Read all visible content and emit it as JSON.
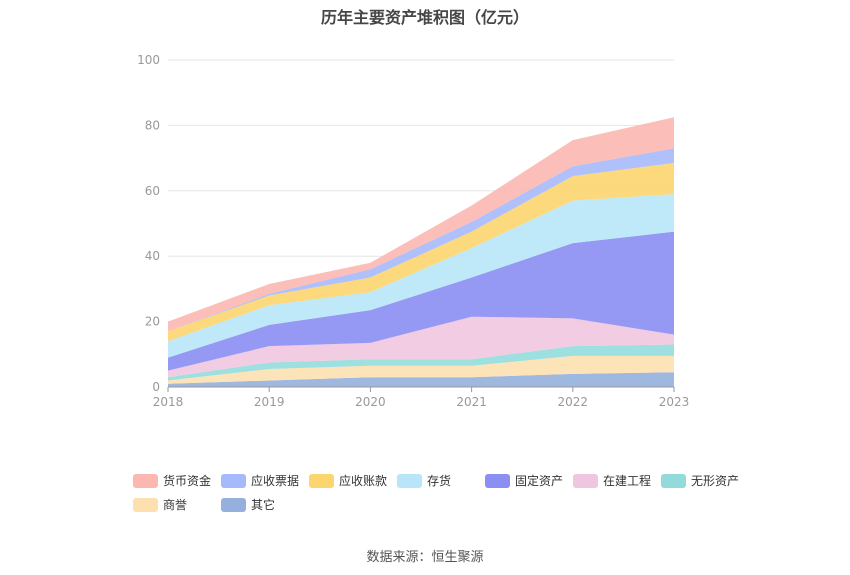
{
  "chart_data": {
    "type": "area",
    "stacked": true,
    "title": "历年主要资产堆积图（亿元）",
    "categories": [
      "2018",
      "2019",
      "2020",
      "2021",
      "2022",
      "2023"
    ],
    "ylim": [
      0,
      100
    ],
    "yticks": [
      0,
      20,
      40,
      60,
      80,
      100
    ],
    "grid": true,
    "legend_position": "bottom",
    "series": [
      {
        "name": "其它",
        "color": "#95b0dc",
        "values": [
          1,
          2,
          3,
          3,
          4,
          4.5
        ]
      },
      {
        "name": "商誉",
        "color": "#fde0b0",
        "values": [
          1,
          3.5,
          3.5,
          3.5,
          5.5,
          5
        ]
      },
      {
        "name": "无形资产",
        "color": "#93dbdb",
        "values": [
          1,
          2,
          2,
          2,
          3,
          3.5
        ]
      },
      {
        "name": "在建工程",
        "color": "#efc6e0",
        "values": [
          2,
          5,
          5,
          13,
          8.5,
          3
        ]
      },
      {
        "name": "固定资产",
        "color": "#8b8ef2",
        "values": [
          4,
          6.5,
          10,
          12,
          23,
          31.5
        ]
      },
      {
        "name": "存货",
        "color": "#b8e6f8",
        "values": [
          5,
          6,
          5.5,
          9,
          13,
          11.5
        ]
      },
      {
        "name": "应收账款",
        "color": "#fdd56f",
        "values": [
          3,
          3,
          4.5,
          5,
          7.5,
          9.5
        ]
      },
      {
        "name": "应收票据",
        "color": "#a6b9fb",
        "values": [
          0,
          0.5,
          2.5,
          3,
          3,
          4.5
        ]
      },
      {
        "name": "货币资金",
        "color": "#fcb7b1",
        "values": [
          3,
          3,
          2,
          5,
          8,
          9.5
        ]
      }
    ]
  },
  "legend_order": [
    "货币资金",
    "应收票据",
    "应收账款",
    "存货",
    "固定资产",
    "在建工程",
    "无形资产",
    "商誉",
    "其它"
  ],
  "source_note": "数据来源：恒生聚源"
}
